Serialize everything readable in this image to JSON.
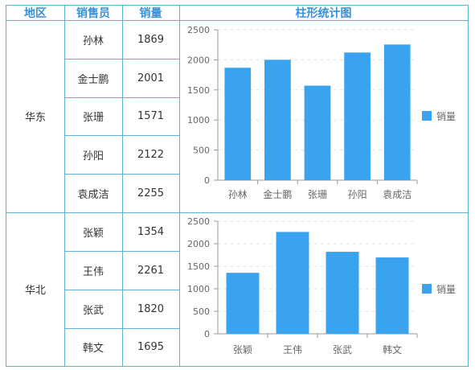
{
  "header": {
    "region": "地区",
    "salesperson": "销售员",
    "sales": "销量",
    "chart": "柱形统计图"
  },
  "groups": [
    {
      "region": "华东",
      "rows": [
        {
          "name": "孙林",
          "value": "1869"
        },
        {
          "name": "金士鹏",
          "value": "2001"
        },
        {
          "name": "张珊",
          "value": "1571"
        },
        {
          "name": "孙阳",
          "value": "2122"
        },
        {
          "name": "袁成洁",
          "value": "2255"
        }
      ]
    },
    {
      "region": "华北",
      "rows": [
        {
          "name": "张颖",
          "value": "1354"
        },
        {
          "name": "王伟",
          "value": "2261"
        },
        {
          "name": "张武",
          "value": "1820"
        },
        {
          "name": "韩文",
          "value": "1695"
        }
      ]
    }
  ],
  "colors": {
    "bar": "#3aa3f0",
    "border": "#5fb3d0",
    "header": "#3a8fd6"
  },
  "chart_data": [
    {
      "type": "bar",
      "categories": [
        "孙林",
        "金士鹏",
        "张珊",
        "孙阳",
        "袁成洁"
      ],
      "series": [
        {
          "name": "销量",
          "values": [
            1869,
            2001,
            1571,
            2122,
            2255
          ]
        }
      ],
      "ylim": [
        0,
        2500
      ],
      "yticks": [
        0,
        500,
        1000,
        1500,
        2000,
        2500
      ],
      "grid": true,
      "legend": "right"
    },
    {
      "type": "bar",
      "categories": [
        "张颖",
        "王伟",
        "张武",
        "韩文"
      ],
      "series": [
        {
          "name": "销量",
          "values": [
            1354,
            2261,
            1820,
            1695
          ]
        }
      ],
      "ylim": [
        0,
        2500
      ],
      "yticks": [
        0,
        500,
        1000,
        1500,
        2000,
        2500
      ],
      "grid": true,
      "legend": "right"
    }
  ]
}
